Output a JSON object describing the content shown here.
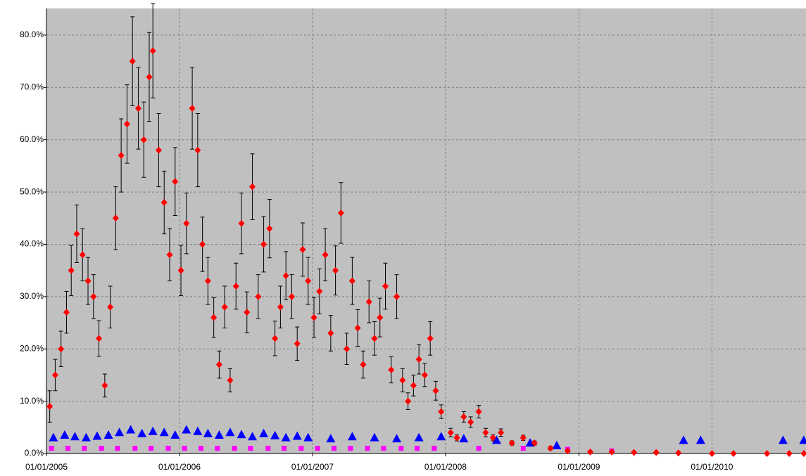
{
  "chart_data": {
    "type": "scatter",
    "xlim": [
      "2005-01-01",
      "2010-09-16"
    ],
    "xticks": [
      {
        "value": "2005-01-01",
        "label": "01/01/2005"
      },
      {
        "value": "2006-01-01",
        "label": "01/01/2006"
      },
      {
        "value": "2007-01-01",
        "label": "01/01/2007"
      },
      {
        "value": "2008-01-01",
        "label": "01/01/2008"
      },
      {
        "value": "2009-01-01",
        "label": "01/01/2009"
      },
      {
        "value": "2010-01-01",
        "label": "01/01/2010"
      }
    ],
    "ylim": [
      0,
      85.1
    ],
    "yticks": [
      {
        "value": 0,
        "label": "0.0%"
      },
      {
        "value": 10,
        "label": "10.0%"
      },
      {
        "value": 20,
        "label": "20.0%"
      },
      {
        "value": 30,
        "label": "30.0%"
      },
      {
        "value": 40,
        "label": "40.0%"
      },
      {
        "value": 50,
        "label": "50.0%"
      },
      {
        "value": 60,
        "label": "60.0%"
      },
      {
        "value": 70,
        "label": "70.0%"
      },
      {
        "value": 80,
        "label": "80.0%"
      }
    ],
    "grid": true,
    "series": [
      {
        "color": "#ff00ff",
        "marker": "square",
        "x": [
          "2005-01-15",
          "2005-03-01",
          "2005-04-15",
          "2005-06-01",
          "2005-07-15",
          "2005-09-01",
          "2005-10-15",
          "2005-12-01",
          "2006-01-15",
          "2006-03-01",
          "2006-04-15",
          "2006-06-01",
          "2006-07-15",
          "2006-09-01",
          "2006-10-15",
          "2006-12-01",
          "2007-01-15",
          "2007-03-01",
          "2007-04-15",
          "2007-06-01",
          "2007-07-15",
          "2007-09-01",
          "2007-10-15",
          "2007-12-01",
          "2008-04-01",
          "2008-08-01",
          "2008-12-01",
          "2009-04-01"
        ],
        "values": [
          1,
          1,
          1,
          1,
          1,
          1,
          1,
          1,
          1,
          1,
          1,
          1,
          1,
          1,
          1,
          1,
          1,
          1,
          1,
          1,
          1,
          1,
          1,
          1,
          1,
          1,
          0.8,
          0.5
        ]
      },
      {
        "color": "#0000ff",
        "marker": "triangle",
        "x": [
          "2005-01-20",
          "2005-02-20",
          "2005-03-20",
          "2005-04-20",
          "2005-05-20",
          "2005-06-20",
          "2005-07-20",
          "2005-08-20",
          "2005-09-20",
          "2005-10-20",
          "2005-11-20",
          "2005-12-20",
          "2006-01-20",
          "2006-02-20",
          "2006-03-20",
          "2006-04-20",
          "2006-05-20",
          "2006-06-20",
          "2006-07-20",
          "2006-08-20",
          "2006-09-20",
          "2006-10-20",
          "2006-11-20",
          "2006-12-20",
          "2007-02-20",
          "2007-04-20",
          "2007-06-20",
          "2007-08-20",
          "2007-10-20",
          "2007-12-20",
          "2008-02-20",
          "2008-05-20",
          "2008-08-20",
          "2008-11-01",
          "2009-10-15",
          "2009-12-01",
          "2010-07-15",
          "2010-09-10"
        ],
        "values": [
          3,
          3.5,
          3.2,
          3,
          3.3,
          3.5,
          4,
          4.5,
          3.8,
          4.2,
          4,
          3.5,
          4.5,
          4.2,
          3.8,
          3.5,
          4,
          3.6,
          3.2,
          3.8,
          3.4,
          3,
          3.3,
          3,
          2.8,
          3.2,
          3,
          2.8,
          3,
          3.2,
          2.8,
          2.5,
          2,
          1.5,
          2.5,
          2.5,
          2.5,
          2.5
        ]
      },
      {
        "color": "#ff0000",
        "marker": "diamond",
        "error_color": "#000000",
        "x": [
          "2005-01-10",
          "2005-01-25",
          "2005-02-10",
          "2005-02-25",
          "2005-03-10",
          "2005-03-25",
          "2005-04-10",
          "2005-04-25",
          "2005-05-10",
          "2005-05-25",
          "2005-06-10",
          "2005-06-25",
          "2005-07-10",
          "2005-07-25",
          "2005-08-10",
          "2005-08-25",
          "2005-09-10",
          "2005-09-25",
          "2005-10-10",
          "2005-10-20",
          "2005-11-05",
          "2005-11-20",
          "2005-12-05",
          "2005-12-20",
          "2006-01-05",
          "2006-01-20",
          "2006-02-05",
          "2006-02-20",
          "2006-03-05",
          "2006-03-20",
          "2006-04-05",
          "2006-04-20",
          "2006-05-05",
          "2006-05-20",
          "2006-06-05",
          "2006-06-20",
          "2006-07-05",
          "2006-07-20",
          "2006-08-05",
          "2006-08-20",
          "2006-09-05",
          "2006-09-20",
          "2006-10-05",
          "2006-10-20",
          "2006-11-05",
          "2006-11-20",
          "2006-12-05",
          "2006-12-20",
          "2007-01-05",
          "2007-01-20",
          "2007-02-05",
          "2007-02-20",
          "2007-03-05",
          "2007-03-20",
          "2007-04-05",
          "2007-04-20",
          "2007-05-05",
          "2007-05-20",
          "2007-06-05",
          "2007-06-20",
          "2007-07-05",
          "2007-07-20",
          "2007-08-05",
          "2007-08-20",
          "2007-09-05",
          "2007-09-20",
          "2007-10-05",
          "2007-10-20",
          "2007-11-05",
          "2007-11-20",
          "2007-12-05",
          "2007-12-20",
          "2008-01-15",
          "2008-02-01",
          "2008-02-20",
          "2008-03-10",
          "2008-04-01",
          "2008-04-20",
          "2008-05-10",
          "2008-06-01",
          "2008-07-01",
          "2008-08-01",
          "2008-09-01",
          "2008-10-15",
          "2008-12-01",
          "2009-02-01",
          "2009-04-01",
          "2009-06-01",
          "2009-08-01",
          "2009-10-01",
          "2010-01-01",
          "2010-03-01",
          "2010-06-01",
          "2010-08-01",
          "2010-09-10"
        ],
        "values": [
          9,
          15,
          20,
          27,
          35,
          42,
          38,
          33,
          30,
          22,
          13,
          28,
          45,
          57,
          63,
          75,
          66,
          60,
          72,
          77,
          58,
          48,
          38,
          52,
          35,
          44,
          66,
          58,
          40,
          33,
          26,
          17,
          28,
          14,
          32,
          44,
          27,
          51,
          30,
          40,
          43,
          22,
          28,
          34,
          30,
          21,
          39,
          33,
          26,
          31,
          38,
          23,
          35,
          46,
          20,
          33,
          24,
          17,
          29,
          22,
          26,
          32,
          16,
          30,
          14,
          10,
          13,
          18,
          15,
          22,
          12,
          8,
          4,
          3,
          7,
          6,
          8,
          4,
          3,
          4,
          2,
          3,
          2,
          1,
          0.5,
          0.3,
          0.3,
          0.2,
          0.2,
          0.1,
          0,
          0,
          0,
          0,
          0
        ],
        "errors": [
          3,
          3,
          3.4,
          4,
          4.8,
          5.5,
          5,
          4.5,
          4.2,
          3.4,
          2.2,
          4,
          6,
          7,
          7.5,
          8.5,
          7.8,
          7.2,
          8.5,
          9,
          7,
          6,
          5,
          6.5,
          4.8,
          5.8,
          7.8,
          7,
          5.2,
          4.5,
          3.8,
          2.6,
          4,
          2.2,
          4.4,
          5.8,
          3.9,
          6.3,
          4.2,
          5.3,
          5.6,
          3.3,
          4,
          4.6,
          4.2,
          3.2,
          5.1,
          4.5,
          3.8,
          4.3,
          5,
          3.4,
          4.7,
          5.8,
          3,
          4.5,
          3.5,
          2.6,
          4,
          3.2,
          3.7,
          4.4,
          2.5,
          4.2,
          2.2,
          1.6,
          2,
          2.8,
          2.2,
          3.2,
          1.8,
          1.3,
          0.8,
          0.6,
          1,
          1,
          1.2,
          0.8,
          0.6,
          0.7,
          0.4,
          0.5,
          0.4,
          0.3,
          0.2,
          0.2,
          0.2,
          0.1,
          0.1,
          0.1,
          0,
          0,
          0,
          0,
          0
        ]
      }
    ]
  }
}
